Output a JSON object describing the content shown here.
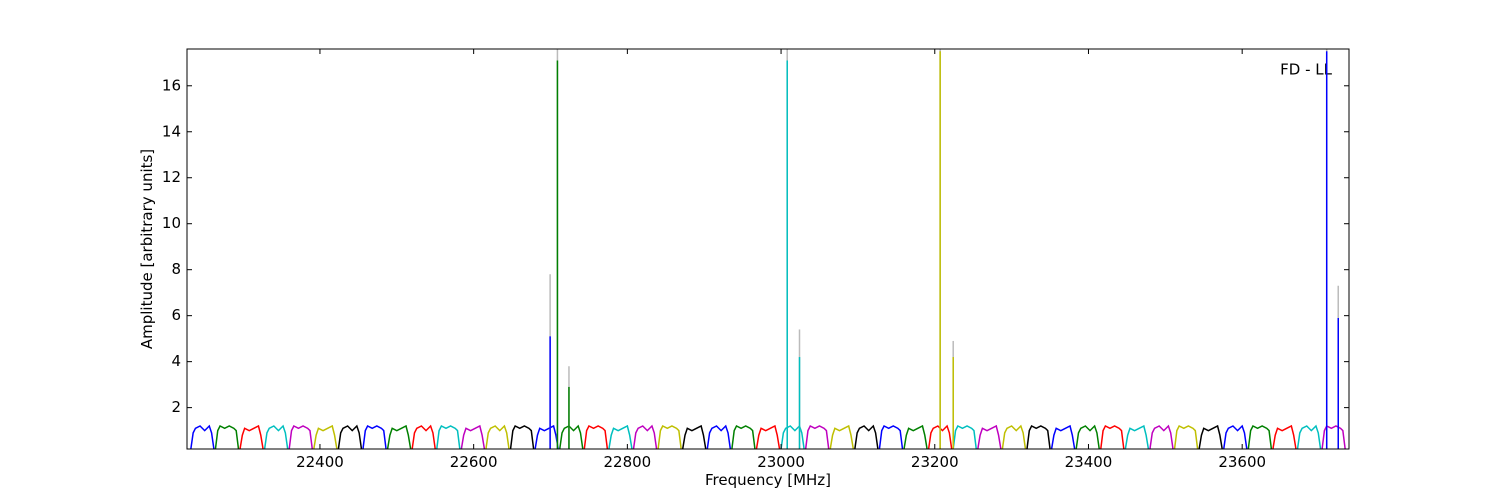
{
  "chart_data": {
    "type": "line",
    "annotation": "FD - LL",
    "xlabel": "Frequency [MHz]",
    "ylabel": "Amplitude [arbitrary units]",
    "xlim": [
      22227,
      23739
    ],
    "ylim": [
      0.2,
      17.6
    ],
    "xticks": [
      22400,
      22600,
      22800,
      23000,
      23200,
      23400,
      23600
    ],
    "yticks": [
      2,
      4,
      6,
      8,
      10,
      12,
      14,
      16
    ],
    "grid": false,
    "series": [
      {
        "color": "#0000ff",
        "x": [
          22232,
          22235,
          22238,
          22244,
          22250,
          22256,
          22259,
          22262
        ],
        "values": [
          0.2,
          0.9,
          1.1,
          1.2,
          1.0,
          1.2,
          0.9,
          0.2
        ]
      },
      {
        "color": "#008000",
        "x": [
          22264,
          22267,
          22270,
          22276,
          22282,
          22288,
          22291,
          22294
        ],
        "values": [
          0.2,
          1.0,
          1.2,
          1.1,
          1.2,
          1.1,
          1.0,
          0.2
        ]
      },
      {
        "color": "#ff0000",
        "x": [
          22296,
          22299,
          22302,
          22308,
          22314,
          22320,
          22323,
          22326
        ],
        "values": [
          0.2,
          0.8,
          1.1,
          1.0,
          1.1,
          1.2,
          0.8,
          0.2
        ]
      },
      {
        "color": "#00bfbf",
        "x": [
          22328,
          22331,
          22334,
          22340,
          22346,
          22352,
          22355,
          22358
        ],
        "values": [
          0.2,
          0.9,
          1.1,
          1.2,
          1.0,
          1.2,
          0.9,
          0.2
        ]
      },
      {
        "color": "#bf00bf",
        "x": [
          22360,
          22363,
          22366,
          22372,
          22378,
          22384,
          22387,
          22390
        ],
        "values": [
          0.2,
          1.0,
          1.2,
          1.1,
          1.2,
          1.1,
          1.0,
          0.2
        ]
      },
      {
        "color": "#bfbf00",
        "x": [
          22392,
          22395,
          22398,
          22404,
          22410,
          22416,
          22419,
          22422
        ],
        "values": [
          0.2,
          0.8,
          1.1,
          1.0,
          1.1,
          1.2,
          0.8,
          0.2
        ]
      },
      {
        "color": "#000000",
        "x": [
          22424,
          22427,
          22430,
          22436,
          22442,
          22448,
          22451,
          22454
        ],
        "values": [
          0.2,
          0.9,
          1.1,
          1.2,
          1.0,
          1.2,
          0.9,
          0.2
        ]
      },
      {
        "color": "#0000ff",
        "x": [
          22456,
          22459,
          22462,
          22468,
          22474,
          22480,
          22483,
          22486
        ],
        "values": [
          0.2,
          1.0,
          1.2,
          1.1,
          1.2,
          1.1,
          1.0,
          0.2
        ]
      },
      {
        "color": "#008000",
        "x": [
          22488,
          22491,
          22494,
          22500,
          22506,
          22512,
          22515,
          22518
        ],
        "values": [
          0.2,
          0.8,
          1.1,
          1.0,
          1.1,
          1.2,
          0.8,
          0.2
        ]
      },
      {
        "color": "#ff0000",
        "x": [
          22520,
          22523,
          22526,
          22532,
          22538,
          22544,
          22547,
          22550
        ],
        "values": [
          0.2,
          0.9,
          1.1,
          1.2,
          1.0,
          1.2,
          0.9,
          0.2
        ]
      },
      {
        "color": "#00bfbf",
        "x": [
          22552,
          22555,
          22558,
          22564,
          22570,
          22576,
          22579,
          22582
        ],
        "values": [
          0.2,
          1.0,
          1.2,
          1.1,
          1.2,
          1.1,
          1.0,
          0.2
        ]
      },
      {
        "color": "#bf00bf",
        "x": [
          22584,
          22587,
          22590,
          22596,
          22602,
          22608,
          22611,
          22614
        ],
        "values": [
          0.2,
          0.8,
          1.1,
          1.0,
          1.1,
          1.2,
          0.8,
          0.2
        ]
      },
      {
        "color": "#bfbf00",
        "x": [
          22616,
          22619,
          22622,
          22628,
          22634,
          22640,
          22643,
          22646
        ],
        "values": [
          0.2,
          0.9,
          1.1,
          1.2,
          1.0,
          1.2,
          0.9,
          0.2
        ]
      },
      {
        "color": "#000000",
        "x": [
          22648,
          22651,
          22654,
          22660,
          22666,
          22672,
          22675,
          22678
        ],
        "values": [
          0.2,
          1.0,
          1.2,
          1.1,
          1.2,
          1.1,
          1.0,
          0.2
        ]
      },
      {
        "color": "#0000ff",
        "x": [
          22680,
          22683,
          22686,
          22692,
          22698,
          22704,
          22707,
          22710
        ],
        "values": [
          0.2,
          0.8,
          1.1,
          1.0,
          1.1,
          1.2,
          0.8,
          0.2
        ]
      },
      {
        "color": "#008000",
        "x": [
          22712,
          22715,
          22718,
          22724,
          22730,
          22736,
          22739,
          22742
        ],
        "values": [
          0.2,
          0.9,
          1.1,
          1.2,
          1.0,
          1.2,
          0.9,
          0.2
        ]
      },
      {
        "color": "#ff0000",
        "x": [
          22744,
          22747,
          22750,
          22756,
          22762,
          22768,
          22771,
          22774
        ],
        "values": [
          0.2,
          1.0,
          1.2,
          1.1,
          1.2,
          1.1,
          1.0,
          0.2
        ]
      },
      {
        "color": "#00bfbf",
        "x": [
          22776,
          22779,
          22782,
          22788,
          22794,
          22800,
          22803,
          22806
        ],
        "values": [
          0.2,
          0.8,
          1.1,
          1.0,
          1.1,
          1.2,
          0.8,
          0.2
        ]
      },
      {
        "color": "#bf00bf",
        "x": [
          22808,
          22811,
          22814,
          22820,
          22826,
          22832,
          22835,
          22838
        ],
        "values": [
          0.2,
          0.9,
          1.1,
          1.2,
          1.0,
          1.2,
          0.9,
          0.2
        ]
      },
      {
        "color": "#bfbf00",
        "x": [
          22840,
          22843,
          22846,
          22852,
          22858,
          22864,
          22867,
          22870
        ],
        "values": [
          0.2,
          1.0,
          1.2,
          1.1,
          1.2,
          1.1,
          1.0,
          0.2
        ]
      },
      {
        "color": "#000000",
        "x": [
          22872,
          22875,
          22878,
          22884,
          22890,
          22896,
          22899,
          22902
        ],
        "values": [
          0.2,
          0.8,
          1.1,
          1.0,
          1.1,
          1.2,
          0.8,
          0.2
        ]
      },
      {
        "color": "#0000ff",
        "x": [
          22904,
          22907,
          22910,
          22916,
          22922,
          22928,
          22931,
          22934
        ],
        "values": [
          0.2,
          0.9,
          1.1,
          1.2,
          1.0,
          1.2,
          0.9,
          0.2
        ]
      },
      {
        "color": "#008000",
        "x": [
          22936,
          22939,
          22942,
          22948,
          22954,
          22960,
          22963,
          22966
        ],
        "values": [
          0.2,
          1.0,
          1.2,
          1.1,
          1.2,
          1.1,
          1.0,
          0.2
        ]
      },
      {
        "color": "#ff0000",
        "x": [
          22968,
          22971,
          22974,
          22980,
          22986,
          22992,
          22995,
          22998
        ],
        "values": [
          0.2,
          0.8,
          1.1,
          1.0,
          1.1,
          1.2,
          0.8,
          0.2
        ]
      },
      {
        "color": "#00bfbf",
        "x": [
          23000,
          23003,
          23006,
          23012,
          23018,
          23024,
          23027,
          23030
        ],
        "values": [
          0.2,
          0.9,
          1.1,
          1.2,
          1.0,
          1.2,
          0.9,
          0.2
        ]
      },
      {
        "color": "#bf00bf",
        "x": [
          23032,
          23035,
          23038,
          23044,
          23050,
          23056,
          23059,
          23062
        ],
        "values": [
          0.2,
          1.0,
          1.2,
          1.1,
          1.2,
          1.1,
          1.0,
          0.2
        ]
      },
      {
        "color": "#bfbf00",
        "x": [
          23064,
          23067,
          23070,
          23076,
          23082,
          23088,
          23091,
          23094
        ],
        "values": [
          0.2,
          0.8,
          1.1,
          1.0,
          1.1,
          1.2,
          0.8,
          0.2
        ]
      },
      {
        "color": "#000000",
        "x": [
          23096,
          23099,
          23102,
          23108,
          23114,
          23120,
          23123,
          23126
        ],
        "values": [
          0.2,
          0.9,
          1.1,
          1.2,
          1.0,
          1.2,
          0.9,
          0.2
        ]
      },
      {
        "color": "#0000ff",
        "x": [
          23128,
          23131,
          23134,
          23140,
          23146,
          23152,
          23155,
          23158
        ],
        "values": [
          0.2,
          1.0,
          1.2,
          1.1,
          1.2,
          1.1,
          1.0,
          0.2
        ]
      },
      {
        "color": "#008000",
        "x": [
          23160,
          23163,
          23166,
          23172,
          23178,
          23184,
          23187,
          23190
        ],
        "values": [
          0.2,
          0.8,
          1.1,
          1.0,
          1.1,
          1.2,
          0.8,
          0.2
        ]
      },
      {
        "color": "#ff0000",
        "x": [
          23192,
          23195,
          23198,
          23204,
          23210,
          23216,
          23219,
          23222
        ],
        "values": [
          0.2,
          0.9,
          1.1,
          1.2,
          1.0,
          1.2,
          0.9,
          0.2
        ]
      },
      {
        "color": "#00bfbf",
        "x": [
          23224,
          23227,
          23230,
          23236,
          23242,
          23248,
          23251,
          23254
        ],
        "values": [
          0.2,
          1.0,
          1.2,
          1.1,
          1.2,
          1.1,
          1.0,
          0.2
        ]
      },
      {
        "color": "#bf00bf",
        "x": [
          23256,
          23259,
          23262,
          23268,
          23274,
          23280,
          23283,
          23286
        ],
        "values": [
          0.2,
          0.8,
          1.1,
          1.0,
          1.1,
          1.2,
          0.8,
          0.2
        ]
      },
      {
        "color": "#bfbf00",
        "x": [
          23288,
          23291,
          23294,
          23300,
          23306,
          23312,
          23315,
          23318
        ],
        "values": [
          0.2,
          0.9,
          1.1,
          1.2,
          1.0,
          1.2,
          0.9,
          0.2
        ]
      },
      {
        "color": "#000000",
        "x": [
          23320,
          23323,
          23326,
          23332,
          23338,
          23344,
          23347,
          23350
        ],
        "values": [
          0.2,
          1.0,
          1.2,
          1.1,
          1.2,
          1.1,
          1.0,
          0.2
        ]
      },
      {
        "color": "#0000ff",
        "x": [
          23352,
          23355,
          23358,
          23364,
          23370,
          23376,
          23379,
          23382
        ],
        "values": [
          0.2,
          0.8,
          1.1,
          1.0,
          1.1,
          1.2,
          0.8,
          0.2
        ]
      },
      {
        "color": "#008000",
        "x": [
          23384,
          23387,
          23390,
          23396,
          23402,
          23408,
          23411,
          23414
        ],
        "values": [
          0.2,
          0.9,
          1.1,
          1.2,
          1.0,
          1.2,
          0.9,
          0.2
        ]
      },
      {
        "color": "#ff0000",
        "x": [
          23416,
          23419,
          23422,
          23428,
          23434,
          23440,
          23443,
          23446
        ],
        "values": [
          0.2,
          1.0,
          1.2,
          1.1,
          1.2,
          1.1,
          1.0,
          0.2
        ]
      },
      {
        "color": "#00bfbf",
        "x": [
          23448,
          23451,
          23454,
          23460,
          23466,
          23472,
          23475,
          23478
        ],
        "values": [
          0.2,
          0.8,
          1.1,
          1.0,
          1.1,
          1.2,
          0.8,
          0.2
        ]
      },
      {
        "color": "#bf00bf",
        "x": [
          23480,
          23483,
          23486,
          23492,
          23498,
          23504,
          23507,
          23510
        ],
        "values": [
          0.2,
          0.9,
          1.1,
          1.2,
          1.0,
          1.2,
          0.9,
          0.2
        ]
      },
      {
        "color": "#bfbf00",
        "x": [
          23512,
          23515,
          23518,
          23524,
          23530,
          23536,
          23539,
          23542
        ],
        "values": [
          0.2,
          1.0,
          1.2,
          1.1,
          1.2,
          1.1,
          1.0,
          0.2
        ]
      },
      {
        "color": "#000000",
        "x": [
          23544,
          23547,
          23550,
          23556,
          23562,
          23568,
          23571,
          23574
        ],
        "values": [
          0.2,
          0.8,
          1.1,
          1.0,
          1.1,
          1.2,
          0.8,
          0.2
        ]
      },
      {
        "color": "#0000ff",
        "x": [
          23576,
          23579,
          23582,
          23588,
          23594,
          23600,
          23603,
          23606
        ],
        "values": [
          0.2,
          0.9,
          1.1,
          1.2,
          1.0,
          1.2,
          0.9,
          0.2
        ]
      },
      {
        "color": "#008000",
        "x": [
          23608,
          23611,
          23614,
          23620,
          23626,
          23632,
          23635,
          23638
        ],
        "values": [
          0.2,
          1.0,
          1.2,
          1.1,
          1.2,
          1.1,
          1.0,
          0.2
        ]
      },
      {
        "color": "#ff0000",
        "x": [
          23640,
          23643,
          23646,
          23652,
          23658,
          23664,
          23667,
          23670
        ],
        "values": [
          0.2,
          0.8,
          1.1,
          1.0,
          1.1,
          1.2,
          0.8,
          0.2
        ]
      },
      {
        "color": "#00bfbf",
        "x": [
          23672,
          23675,
          23678,
          23684,
          23690,
          23696,
          23699,
          23702
        ],
        "values": [
          0.2,
          0.9,
          1.1,
          1.2,
          1.0,
          1.2,
          0.9,
          0.2
        ]
      },
      {
        "color": "#bf00bf",
        "x": [
          23704,
          23707,
          23710,
          23716,
          23722,
          23728,
          23731,
          23734
        ],
        "values": [
          0.2,
          1.0,
          1.2,
          1.1,
          1.2,
          1.1,
          1.0,
          0.2
        ]
      }
    ],
    "peaks": {
      "x": [
        22699.5,
        22709,
        22724,
        23008,
        23024,
        23207,
        23224,
        23710,
        23725
      ],
      "reference": [
        7.8,
        17.6,
        3.8,
        17.6,
        5.4,
        17.6,
        4.9,
        17.6,
        7.3
      ],
      "reference_color": "#bbbbbb",
      "values": [
        5.1,
        17.1,
        2.9,
        17.1,
        4.2,
        17.5,
        4.2,
        17.5,
        5.9
      ],
      "colors": [
        "#0000ff",
        "#008000",
        "#008000",
        "#00bfbf",
        "#00bfbf",
        "#bfbf00",
        "#bfbf00",
        "#0000ff",
        "#0000ff"
      ]
    }
  }
}
